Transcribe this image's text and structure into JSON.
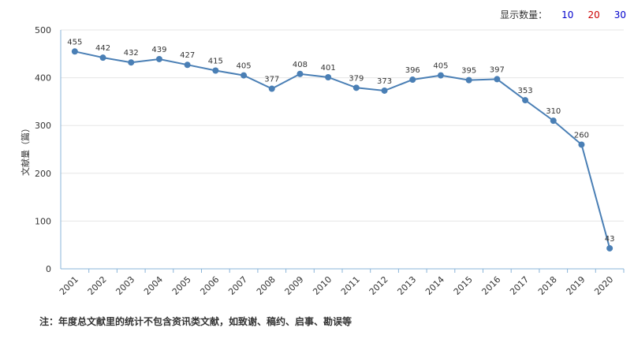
{
  "display_count": {
    "label": "显示数量：",
    "options": [
      {
        "label": "10",
        "color": "#0000cc"
      },
      {
        "label": "20",
        "color": "#cc0000"
      },
      {
        "label": "30",
        "color": "#0000cc"
      }
    ]
  },
  "chart_data": {
    "type": "line",
    "title": "",
    "xlabel": "",
    "ylabel": "文献量（篇）",
    "ylim": [
      0,
      500
    ],
    "yticks": [
      0,
      100,
      200,
      300,
      400,
      500
    ],
    "grid": true,
    "line_color": "#4a7fb5",
    "categories": [
      "2001",
      "2002",
      "2003",
      "2004",
      "2005",
      "2006",
      "2007",
      "2008",
      "2009",
      "2010",
      "2011",
      "2012",
      "2013",
      "2014",
      "2015",
      "2016",
      "2017",
      "2018",
      "2019",
      "2020"
    ],
    "series": [
      {
        "values": [
          455,
          442,
          432,
          439,
          427,
          415,
          405,
          377,
          408,
          401,
          379,
          373,
          396,
          405,
          395,
          397,
          353,
          310,
          260,
          43
        ]
      }
    ]
  },
  "note": "注：年度总文献里的统计不包含资讯类文献，如致谢、稿约、启事、勘误等"
}
